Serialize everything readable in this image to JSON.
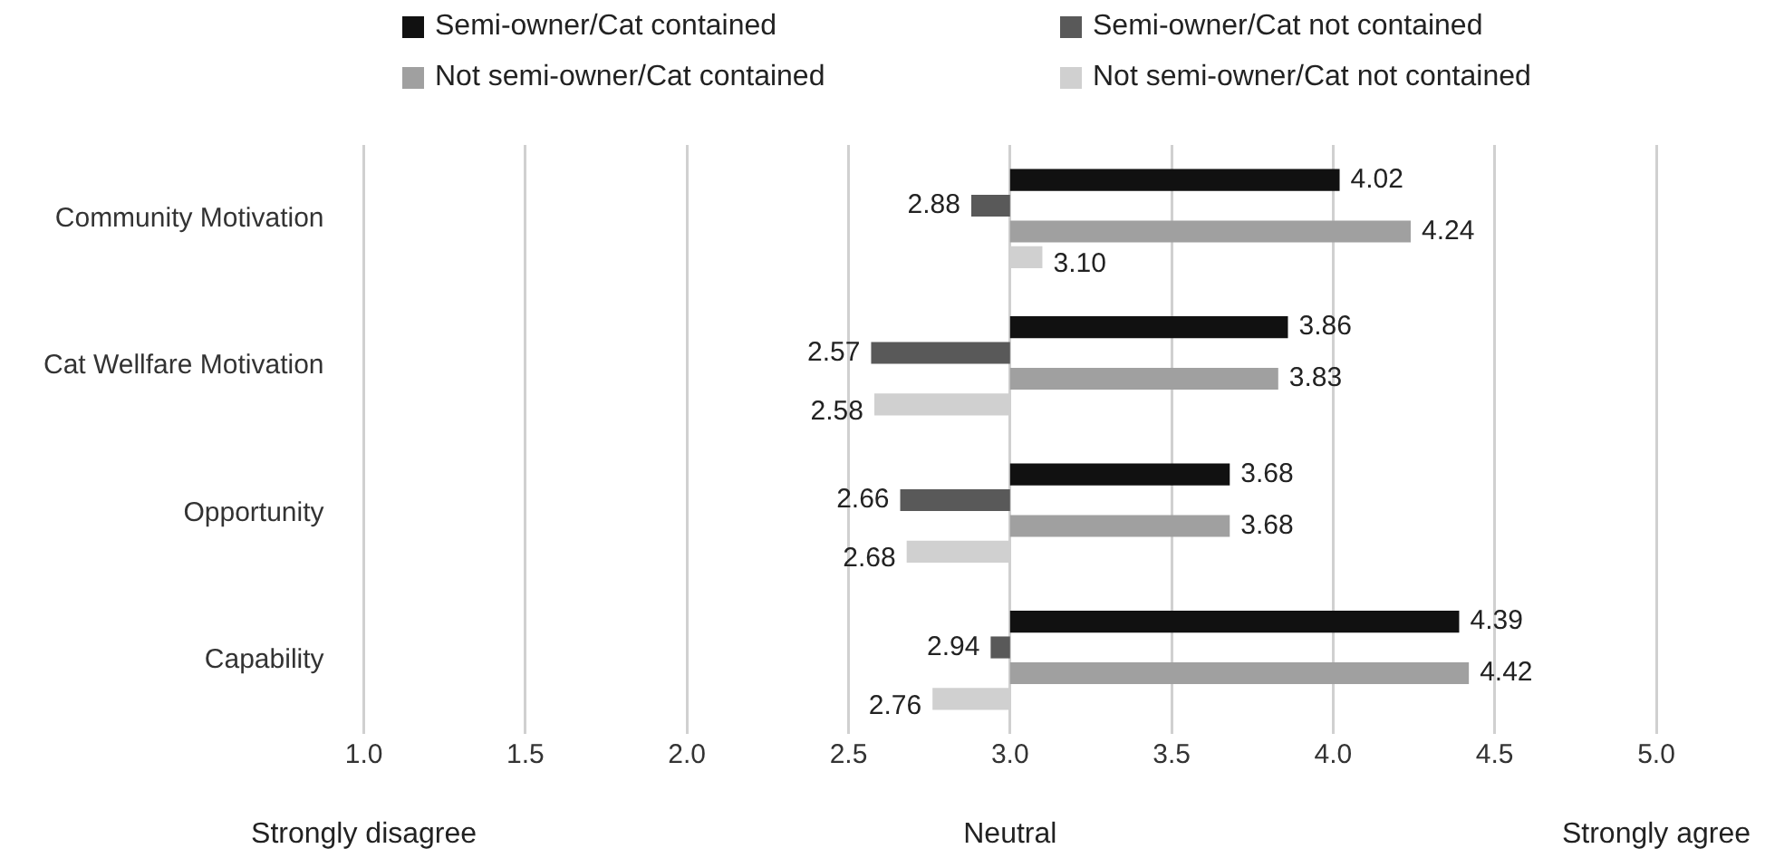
{
  "chart_data": {
    "type": "bar",
    "orientation": "horizontal",
    "categories": [
      "Community Motivation",
      "Cat Wellfare Motivation",
      "Opportunity",
      "Capability"
    ],
    "series": [
      {
        "name": "Semi-owner/Cat contained",
        "color": "#111111",
        "base": [
          3,
          3,
          3,
          3
        ],
        "values": [
          1.02,
          0.86,
          0.68,
          1.39
        ],
        "value_labels": [
          "4.02",
          "3.86",
          "3.68",
          "4.39"
        ]
      },
      {
        "name": "Semi-owner/Cat not contained",
        "color": "#595959",
        "base": [
          3,
          3,
          3,
          3
        ],
        "values": [
          -0.12,
          -0.43,
          -0.34,
          -0.06
        ],
        "value_labels": [
          "2.88",
          "2.57",
          "2.66",
          "2.94"
        ]
      },
      {
        "name": "Not semi-owner/Cat contained",
        "color": "#a0a0a0",
        "base": [
          3,
          3,
          3,
          3
        ],
        "values": [
          1.24,
          0.83,
          0.68,
          1.42
        ],
        "value_labels": [
          "4.24",
          "3.83",
          "3.68",
          "4.42"
        ]
      },
      {
        "name": "Not semi-owner/Cat not contained",
        "color": "#d0d0d0",
        "base": [
          3,
          3,
          3,
          3
        ],
        "values": [
          0.1,
          -0.42,
          -0.32,
          -0.24
        ],
        "value_labels": [
          "3.10",
          "2.58",
          "2.68",
          "2.76"
        ]
      }
    ],
    "xlim": [
      1,
      5
    ],
    "xticks": [
      {
        "value": 1,
        "label": "1.0"
      },
      {
        "value": 1.5,
        "label": "1.5"
      },
      {
        "value": 2,
        "label": "2.0"
      },
      {
        "value": 2.5,
        "label": "2.5"
      },
      {
        "value": 3,
        "label": "3.0"
      },
      {
        "value": 3.5,
        "label": "3.5"
      },
      {
        "value": 4,
        "label": "4.0"
      },
      {
        "value": 4.5,
        "label": "4.5"
      },
      {
        "value": 5,
        "label": "5.0"
      }
    ],
    "grid": "x",
    "legend": "top",
    "annotations": [
      "Strongly disagree",
      "Neutral",
      "Strongly agree"
    ]
  }
}
